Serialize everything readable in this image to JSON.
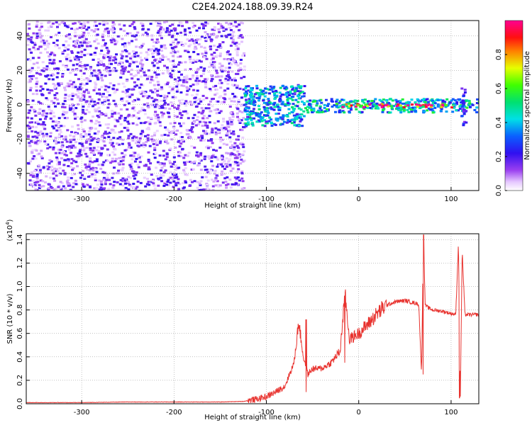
{
  "title": "C2E4.2024.188.09.39.R24",
  "chart_data": [
    {
      "type": "heatmap",
      "xlabel": "Height of straight line (km)",
      "ylabel": "Frequency (Hz)",
      "xlim": [
        -360,
        130
      ],
      "ylim": [
        -50,
        49
      ],
      "xticks": [
        -300,
        -200,
        -100,
        0,
        100
      ],
      "yticks": [
        -40,
        -20,
        0,
        20,
        40
      ],
      "colorbar": {
        "label": "Normalized spectral amplitude",
        "range": [
          0.0,
          1.0
        ],
        "ticks": [
          0.0,
          0.2,
          0.4,
          0.6,
          0.8
        ],
        "colormap": "rainbow (white-violet-blue-cyan-green-yellow-red-magenta)"
      },
      "regions": [
        {
          "x": [
            -360,
            -125
          ],
          "freq": [
            -50,
            49
          ],
          "amplitude": 0.1
        },
        {
          "x": [
            -125,
            -60
          ],
          "freq": [
            -12,
            12
          ],
          "amplitude": 0.35
        },
        {
          "x": [
            -60,
            130
          ],
          "freq": [
            -4,
            4
          ],
          "amplitude": 0.4
        },
        {
          "x": [
            -20,
            100
          ],
          "freq": [
            -1,
            1
          ],
          "amplitude": 0.9
        },
        {
          "x": [
            110,
            115
          ],
          "freq": [
            -12,
            12
          ],
          "amplitude": 0.2
        }
      ],
      "grid": true
    },
    {
      "type": "line",
      "xlabel": "Height of straight line (km)",
      "ylabel": "SNR (10 * v/v)",
      "ylabel_scale": "(x10^4)",
      "xlim": [
        -360,
        130
      ],
      "ylim": [
        0.0,
        1.45
      ],
      "xticks": [
        -300,
        -200,
        -100,
        0,
        100
      ],
      "yticks": [
        0.0,
        0.2,
        0.4,
        0.6,
        0.8,
        1.0,
        1.2,
        1.4
      ],
      "color": "#e8322e",
      "grid": true,
      "series": [
        {
          "x": [
            -360,
            -300,
            -250,
            -200,
            -150,
            -125,
            -110,
            -100,
            -90,
            -80,
            -70,
            -65,
            -60,
            -55,
            -50,
            -40,
            -30,
            -20,
            -15,
            -10,
            0,
            10,
            20,
            30,
            40,
            50,
            60,
            65,
            68,
            70,
            72,
            75,
            80,
            90,
            100,
            105,
            108,
            110,
            112,
            115,
            120,
            130
          ],
          "y": [
            0.01,
            0.01,
            0.015,
            0.015,
            0.015,
            0.02,
            0.04,
            0.06,
            0.1,
            0.15,
            0.35,
            0.7,
            0.4,
            0.25,
            0.3,
            0.3,
            0.35,
            0.45,
            0.95,
            0.55,
            0.6,
            0.68,
            0.77,
            0.84,
            0.87,
            0.88,
            0.86,
            0.85,
            0.25,
            1.44,
            0.84,
            0.82,
            0.8,
            0.79,
            0.77,
            0.76,
            1.37,
            0.05,
            1.3,
            0.76,
            0.76,
            0.76
          ]
        }
      ],
      "spikes": [
        {
          "x": 70,
          "top": 1.44,
          "bottom": 0.25
        },
        {
          "x": 109,
          "top": 1.37,
          "bottom": 0.05
        },
        {
          "x": -15,
          "top": 0.95,
          "bottom": 0.35
        },
        {
          "x": -57,
          "top": 0.72,
          "bottom": 0.1
        }
      ]
    }
  ]
}
